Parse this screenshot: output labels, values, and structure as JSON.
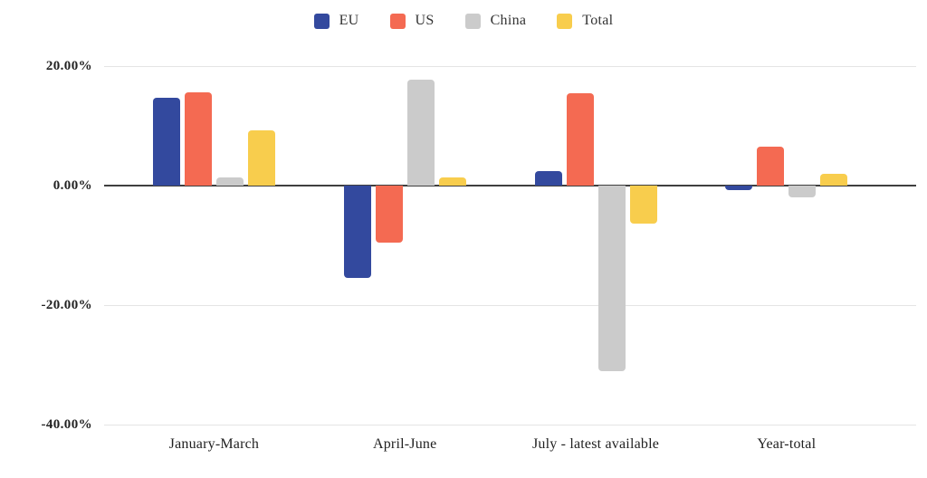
{
  "chart_data": {
    "type": "bar",
    "title": "",
    "xlabel": "",
    "ylabel": "",
    "categories": [
      "January-March",
      "April-June",
      "July - latest available",
      "Year-total"
    ],
    "series": [
      {
        "name": "EU",
        "color": "#33499e",
        "values": [
          14.7,
          -15.5,
          2.4,
          -0.7
        ]
      },
      {
        "name": "US",
        "color": "#f46a52",
        "values": [
          15.6,
          -9.6,
          15.4,
          6.5
        ]
      },
      {
        "name": "China",
        "color": "#cbcbcb",
        "values": [
          1.4,
          17.7,
          -31.0,
          -1.9
        ]
      },
      {
        "name": "Total",
        "color": "#f8cd4d",
        "values": [
          9.3,
          1.3,
          -6.4,
          2.0
        ]
      }
    ],
    "y_ticks": [
      {
        "value": 20,
        "label": "20.00%"
      },
      {
        "value": 0,
        "label": "0.00%"
      },
      {
        "value": -20,
        "label": "-20.00%"
      },
      {
        "value": -40,
        "label": "-40.00%"
      }
    ],
    "ylim": [
      -40,
      20
    ],
    "grid": true,
    "legend_position": "top"
  },
  "colors": {
    "background": "#ffffff",
    "gridline": "#e4e4e4",
    "zero_axis": "#3f3f3f",
    "axis_text": "#222222",
    "category_text": "#1f1f1f"
  }
}
